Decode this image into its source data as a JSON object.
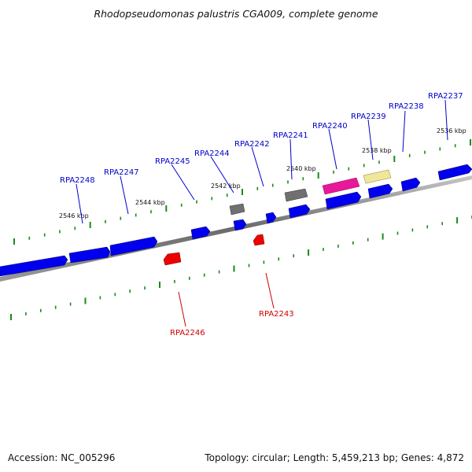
{
  "title": "Rhodopseudomonas palustris CGA009, complete genome",
  "accession": "Accession: NC_005296",
  "topology": "Topology: circular; Length: 5,459,213 bp; Genes: 4,872",
  "scale_labels": [
    "2536 kbp",
    "2538 kbp",
    "2540 kbp",
    "2542 kbp",
    "2544 kbp",
    "2546 kbp"
  ],
  "genes_top": [
    "RPA2237",
    "RPA2238",
    "RPA2239",
    "RPA2240",
    "RPA2241",
    "RPA2242",
    "RPA2244",
    "RPA2245",
    "RPA2247",
    "RPA2248"
  ],
  "genes_bottom": [
    "RPA2243",
    "RPA2246"
  ],
  "colors": {
    "forward_gene": "#0000ee",
    "reverse_gene": "#ee0000",
    "highlight_gene": "#e8189a",
    "pale_gene": "#efe79a",
    "gray_gene": "#707070",
    "tick": "#1a8a1a",
    "label_forward": "#0000cc",
    "label_reverse": "#cc0000"
  }
}
